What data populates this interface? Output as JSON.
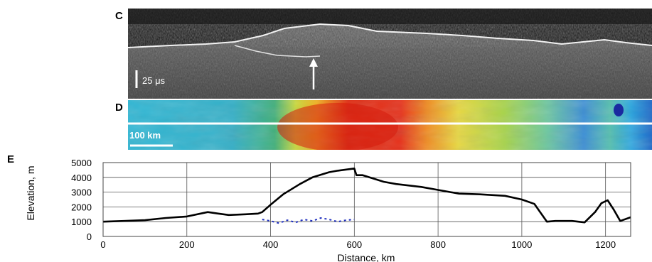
{
  "panel_c": {
    "letter": "C",
    "scale_bar_label": "25 μs"
  },
  "panel_d": {
    "letter": "D",
    "scale_bar_label": "100 km"
  },
  "panel_e": {
    "letter": "E"
  },
  "colors": {
    "profile_line": "#000000",
    "subsurface_points": "#1f2fbf",
    "grid": "#555555"
  },
  "chart_data": {
    "type": "line",
    "title": "",
    "xlabel": "Distance, km",
    "ylabel": "Elevation, m",
    "xlim": [
      0,
      1260
    ],
    "ylim": [
      0,
      5000
    ],
    "x_ticks": [
      0,
      200,
      400,
      600,
      800,
      1000,
      1200
    ],
    "y_ticks": [
      0,
      1000,
      2000,
      3000,
      4000,
      5000
    ],
    "grid": true,
    "series": [
      {
        "style": "solid",
        "color": "#000000",
        "x": [
          0,
          50,
          100,
          150,
          200,
          250,
          275,
          300,
          340,
          370,
          380,
          400,
          430,
          470,
          500,
          540,
          560,
          600,
          605,
          620,
          670,
          700,
          760,
          800,
          850,
          900,
          960,
          1000,
          1030,
          1050,
          1060,
          1080,
          1120,
          1150,
          1175,
          1190,
          1205,
          1220,
          1235,
          1260
        ],
        "y": [
          1000,
          1050,
          1100,
          1250,
          1350,
          1650,
          1550,
          1450,
          1500,
          1550,
          1650,
          2150,
          2850,
          3550,
          4000,
          4350,
          4450,
          4600,
          4150,
          4150,
          3700,
          3550,
          3350,
          3150,
          2900,
          2850,
          2750,
          2500,
          2200,
          1400,
          1000,
          1050,
          1050,
          950,
          1650,
          2250,
          2450,
          1800,
          1050,
          1300
        ]
      },
      {
        "style": "dashed",
        "color": "#1f2fbf",
        "x": [
          380,
          400,
          420,
          440,
          460,
          480,
          500,
          520,
          540,
          560,
          580,
          600
        ],
        "y": [
          1150,
          1050,
          900,
          1100,
          950,
          1150,
          1050,
          1250,
          1150,
          1000,
          1100,
          1150
        ]
      }
    ]
  }
}
